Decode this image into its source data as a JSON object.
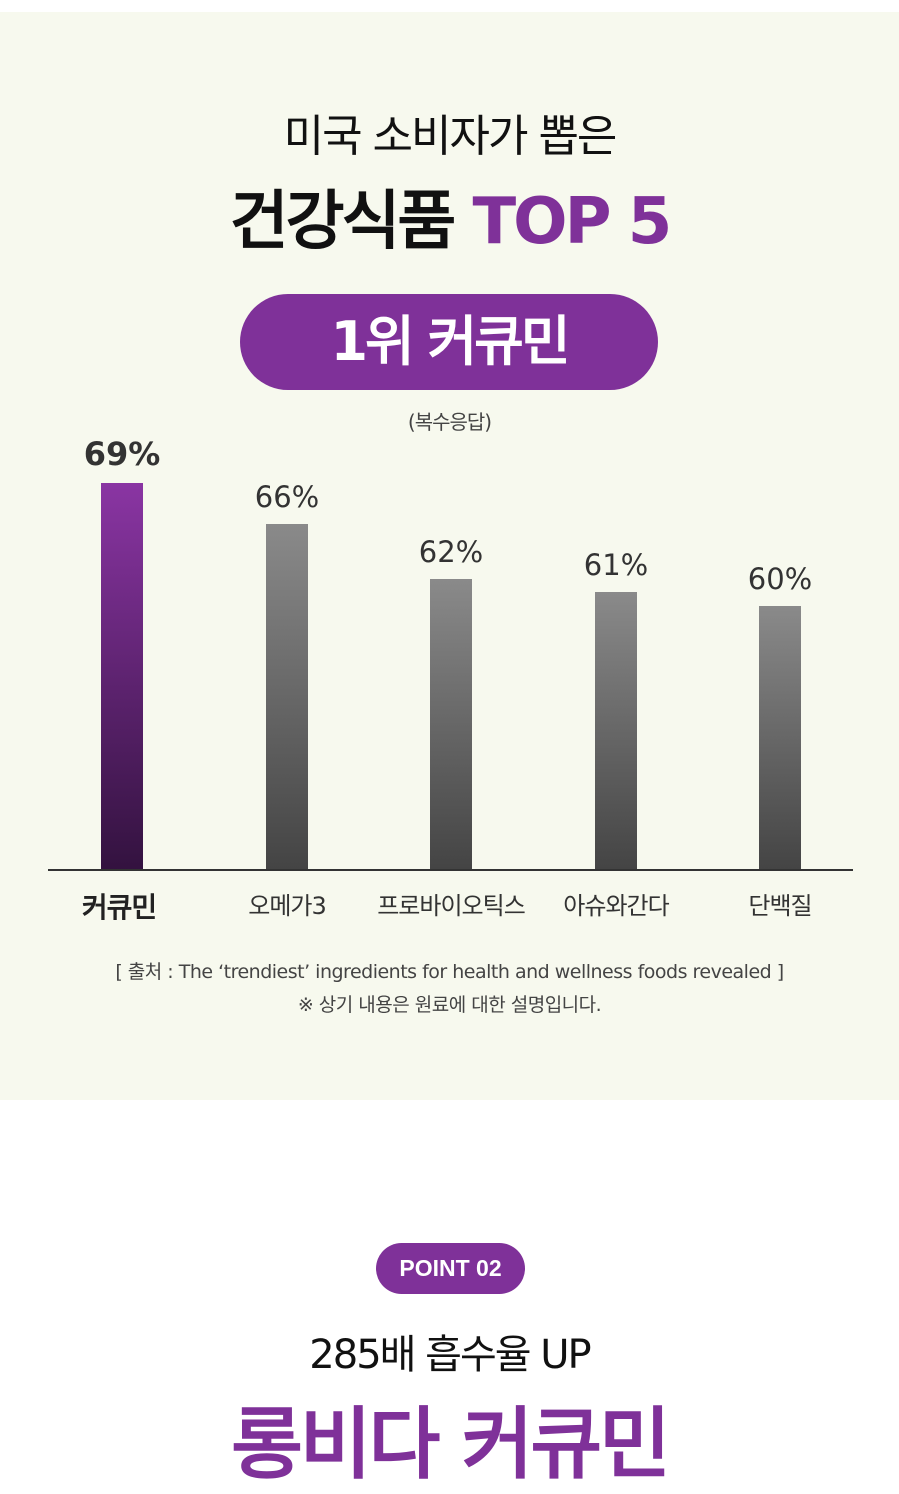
{
  "header": {
    "subtitle": "미국 소비자가 뽑은",
    "title_main": "건강식품",
    "title_accent": "TOP 5"
  },
  "badge": "1위 커큐민",
  "chart_note": "(복수응답)",
  "chart_data": {
    "type": "bar",
    "categories": [
      "커큐민",
      "오메가3",
      "프로바이오틱스",
      "아슈와간다",
      "단백질"
    ],
    "values": [
      69,
      66,
      62,
      61,
      60
    ],
    "labels": [
      "69%",
      "66%",
      "62%",
      "61%",
      "60%"
    ],
    "unit": "%",
    "highlight_index": 0,
    "colors": {
      "highlight": [
        "#8a35a3",
        "#33123f"
      ],
      "default": [
        "#8a8a8a",
        "#444444"
      ]
    },
    "grid": false
  },
  "source": {
    "line1": "[ 출처 : The ‘trendiest’ ingredients for health and wellness foods revealed ]",
    "line2": "※ 상기 내용은 원료에 대한 설명입니다."
  },
  "point": {
    "badge": "POINT 02",
    "headline": "285배 흡수율 UP",
    "title": "롱비다 커큐민"
  },
  "colors": {
    "accent": "#7f3199",
    "panel_bg": "#f7f9ee"
  }
}
